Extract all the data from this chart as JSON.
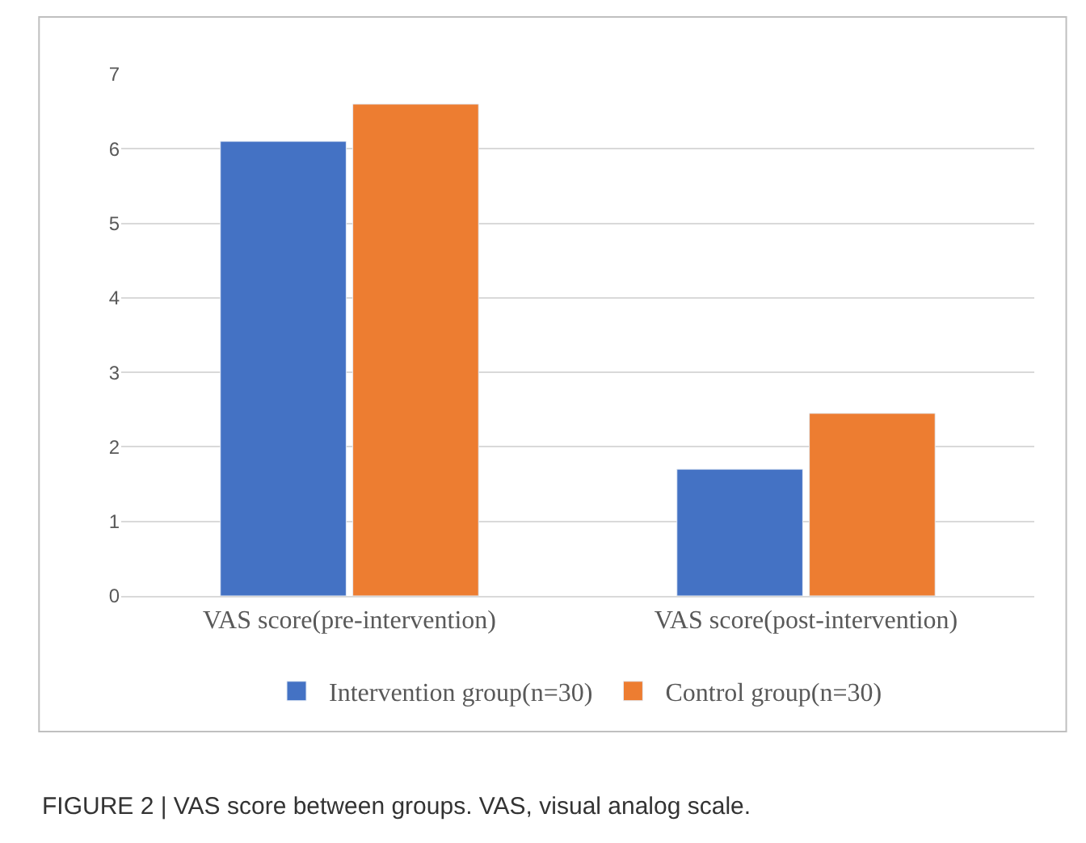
{
  "chart_data": {
    "type": "bar",
    "categories": [
      "VAS score(pre-intervention)",
      "VAS score(post-intervention)"
    ],
    "series": [
      {
        "name": "Intervention group(n=30)",
        "color": "#4472c4",
        "values": [
          6.1,
          1.7
        ]
      },
      {
        "name": "Control group(n=30)",
        "color": "#ed7d31",
        "values": [
          6.6,
          2.45
        ]
      }
    ],
    "ylim": [
      0,
      7
    ],
    "yticks": [
      0,
      1,
      2,
      3,
      4,
      5,
      6,
      7
    ],
    "grid": "y",
    "legend": "bottom",
    "annotations": [
      "FIGURE 2 | VAS score between groups. VAS, visual analog scale."
    ]
  }
}
